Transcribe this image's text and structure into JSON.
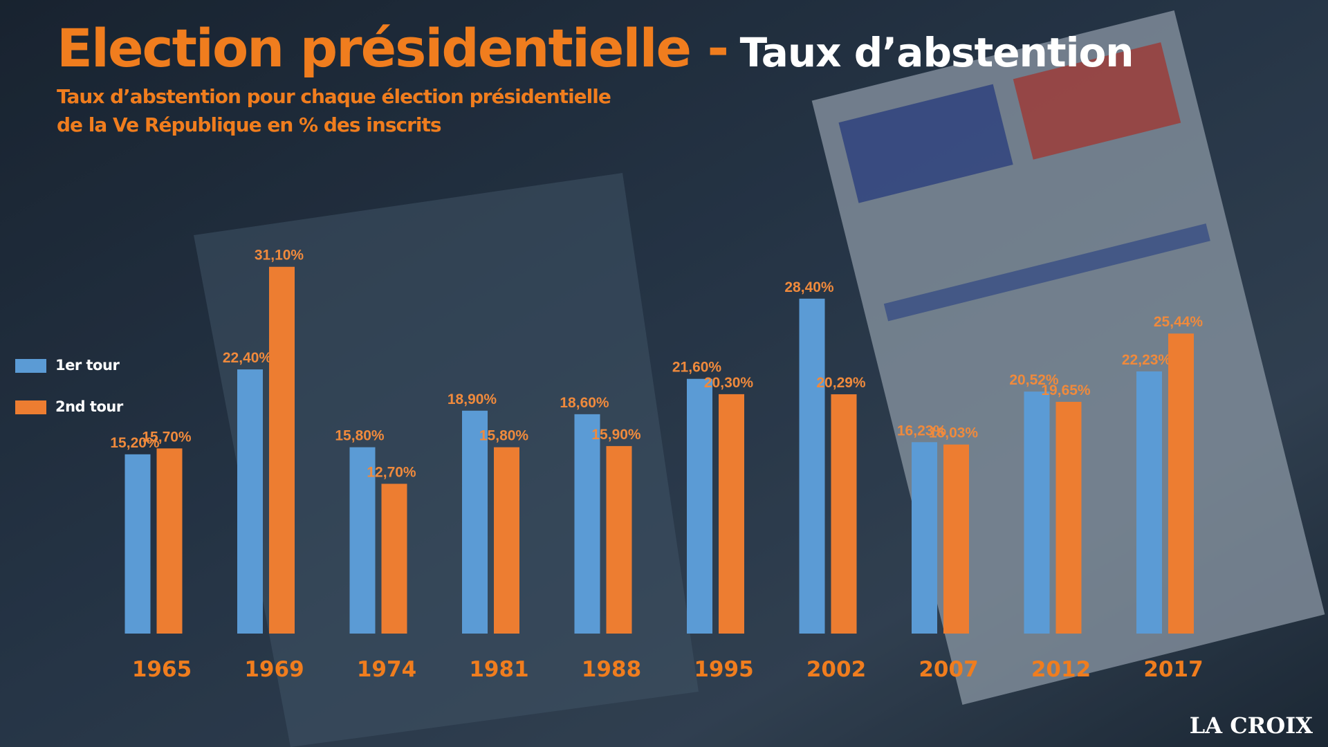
{
  "chart_data": {
    "type": "bar",
    "title": [
      "Election présidentielle -",
      "Taux d’abstention"
    ],
    "subtitle": [
      "Taux d’abstention  pour chaque élection présidentielle",
      "de la Ve République en % des inscrits"
    ],
    "categories": [
      "1965",
      "1969",
      "1974",
      "1981",
      "1988",
      "1995",
      "2002",
      "2007",
      "2012",
      "2017"
    ],
    "series": [
      {
        "name": "1er tour",
        "color": "#5b9bd5",
        "values": [
          15.2,
          22.4,
          15.8,
          18.9,
          18.6,
          21.6,
          28.4,
          16.23,
          20.52,
          22.23
        ],
        "value_labels": [
          "15,20%",
          "22,40%",
          "15,80%",
          "18,90%",
          "18,60%",
          "21,60%",
          "28,40%",
          "16,23%",
          "20,52%",
          "22,23%"
        ]
      },
      {
        "name": "2nd tour",
        "color": "#ed7d31",
        "values": [
          15.7,
          31.1,
          12.7,
          15.8,
          15.9,
          20.3,
          20.29,
          16.03,
          19.65,
          25.44
        ],
        "value_labels": [
          "15,70%",
          "31,10%",
          "12,70%",
          "15,80%",
          "15,90%",
          "20,30%",
          "20,29%",
          "16,03%",
          "19,65%",
          "25,44%"
        ]
      }
    ],
    "legend": "left",
    "source": "LA CROIX"
  }
}
